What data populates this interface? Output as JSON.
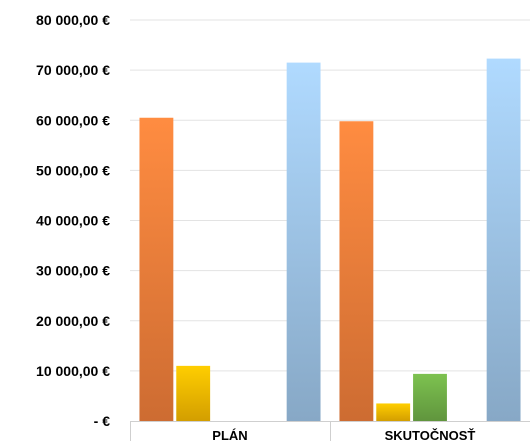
{
  "chart_data": {
    "type": "bar",
    "categories": [
      "PLÁN",
      "SKUTOČNOSŤ"
    ],
    "series": [
      {
        "values": [
          60500,
          59800
        ],
        "color": "#ee7d3a"
      },
      {
        "values": [
          11000,
          3500
        ],
        "color": "#f5b800"
      },
      {
        "values": [
          null,
          9400
        ],
        "color": "#70ad47"
      },
      {
        "values": [
          null,
          null
        ],
        "color": "#5b9bd5"
      },
      {
        "values": [
          71500,
          72300
        ],
        "color": "#9dc3e6"
      }
    ],
    "y_tick_labels": [
      "-  €",
      "10 000,00 €",
      "20 000,00 €",
      "30 000,00 €",
      "40 000,00 €",
      "50 000,00 €",
      "60 000,00 €",
      "70 000,00 €",
      "80 000,00 €"
    ],
    "ylim": [
      0,
      80000
    ],
    "y_tick_step": 10000,
    "grid": true,
    "legend": "none",
    "title": "",
    "xlabel": "",
    "ylabel": ""
  }
}
